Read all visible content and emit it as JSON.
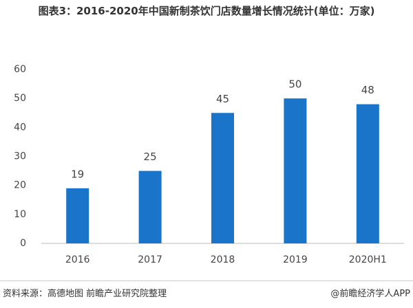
{
  "chart_data": {
    "type": "bar",
    "title": "图表3：2016-2020年中国新制茶饮门店数量增长情况统计(单位：万家)",
    "categories": [
      "2016",
      "2017",
      "2018",
      "2019",
      "2020H1"
    ],
    "values": [
      19,
      25,
      45,
      50,
      48
    ],
    "color": "#1a74c9",
    "ylim": [
      0,
      60
    ],
    "yticks": [
      0,
      10,
      20,
      30,
      40,
      50,
      60
    ],
    "grid": false,
    "source": "资料来源：高德地图 前瞻产业研究院整理",
    "credit": "@前瞻经济学人APP"
  }
}
